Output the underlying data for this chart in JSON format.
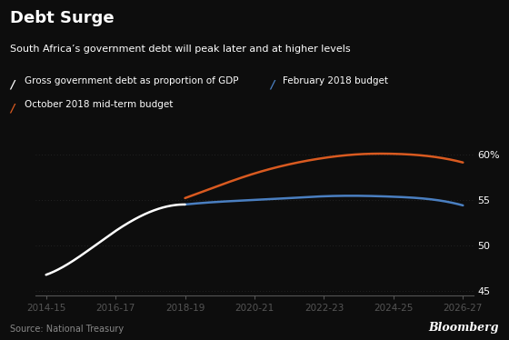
{
  "title": "Debt Surge",
  "subtitle": "South Africa’s government debt will peak later and at higher levels",
  "source": "Source: National Treasury",
  "bloomberg": "Bloomberg",
  "background_color": "#0d0d0d",
  "text_color": "#ffffff",
  "grid_color": "#2a2a2a",
  "axis_color": "#555555",
  "legend": [
    {
      "label": "Gross government debt as proportion of GDP",
      "color": "#ffffff"
    },
    {
      "label": "February 2018 budget",
      "color": "#4a7fc1"
    },
    {
      "label": "October 2018 mid-term budget",
      "color": "#d95a20"
    }
  ],
  "x_labels": [
    "2014-15",
    "2016-17",
    "2018-19",
    "2020-21",
    "2022-23",
    "2024-25",
    "2026-27"
  ],
  "x_ticks": [
    0,
    2,
    4,
    6,
    8,
    10,
    12
  ],
  "white_line_x": [
    0,
    1,
    2,
    3,
    4
  ],
  "white_line_y": [
    46.8,
    48.9,
    51.6,
    53.7,
    54.5
  ],
  "blue_line_x": [
    4,
    5,
    6,
    7,
    8,
    9,
    10,
    11,
    12
  ],
  "blue_line_y": [
    54.5,
    54.8,
    55.0,
    55.2,
    55.4,
    55.45,
    55.35,
    55.1,
    54.4
  ],
  "orange_line_x": [
    4,
    5,
    6,
    7,
    8,
    9,
    10,
    11,
    12
  ],
  "orange_line_y": [
    55.2,
    56.6,
    57.9,
    58.9,
    59.6,
    60.0,
    60.05,
    59.8,
    59.1
  ],
  "ylim": [
    44.5,
    62.0
  ],
  "yticks": [
    45,
    50,
    55,
    60
  ],
  "ytick_labels": [
    "45",
    "50",
    "55",
    "60%"
  ]
}
